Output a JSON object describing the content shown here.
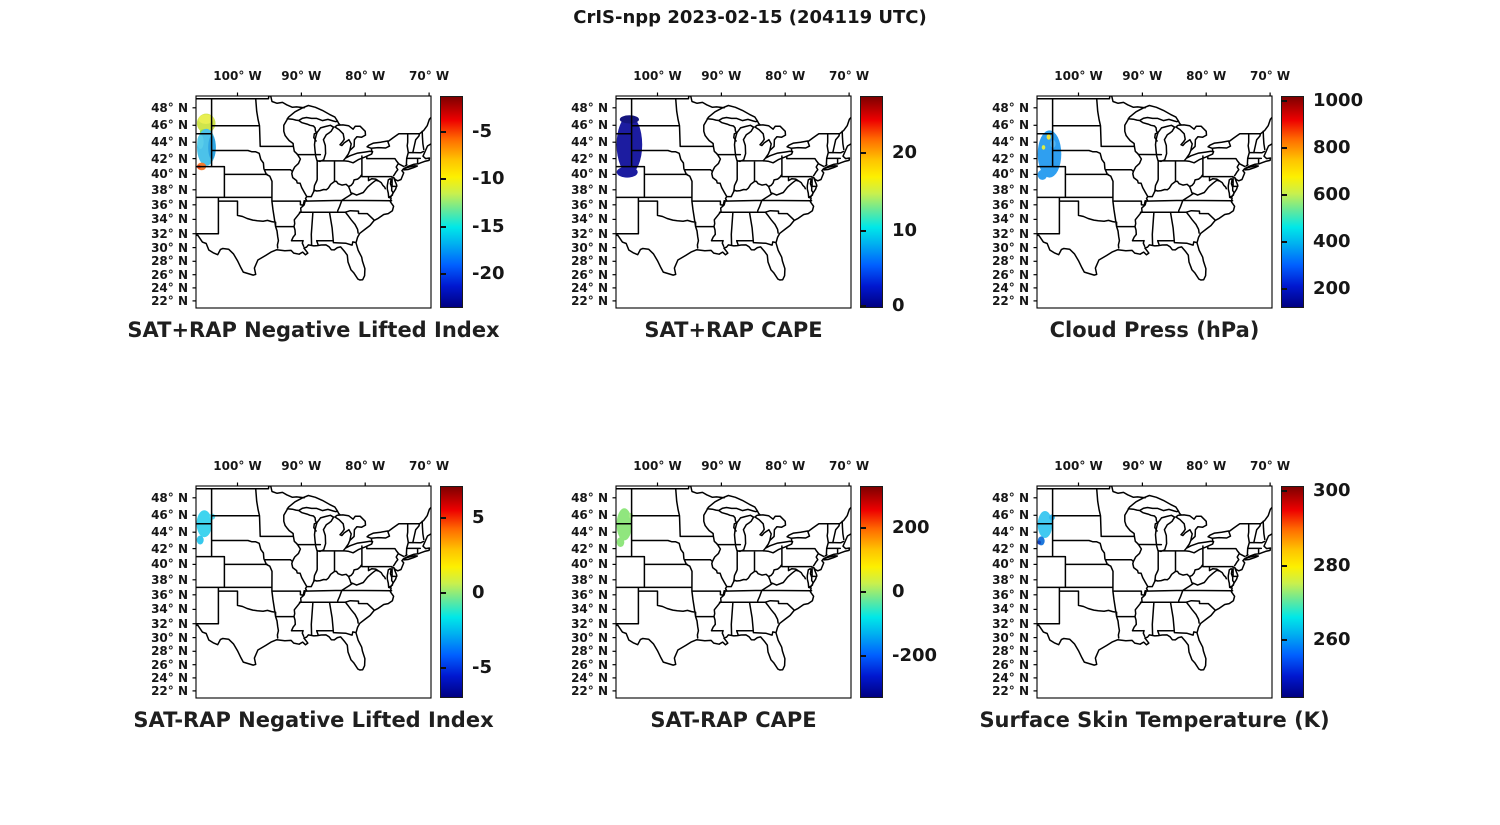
{
  "figure_title": "CrIS-npp 2023-02-15 (204119 UTC)",
  "colorbar_gradient": [
    "#7f0000 0%",
    "#ee0000 11%",
    "#ff6a00 20%",
    "#ffc400 30%",
    "#fdf000 38%",
    "#c8f04e 46%",
    "#64e89b 54%",
    "#00e8e8 62%",
    "#00b0f0 70%",
    "#0060ff 80%",
    "#0018d0 90%",
    "#000082 100%"
  ],
  "map": {
    "lon_ticks": [
      {
        "label": "100° W",
        "lon": -100
      },
      {
        "label": "90° W",
        "lon": -90
      },
      {
        "label": "80° W",
        "lon": -80
      },
      {
        "label": "70° W",
        "lon": -70
      }
    ],
    "lat_ticks": [
      {
        "label": "48° N",
        "lat": 48
      },
      {
        "label": "46° N",
        "lat": 46
      },
      {
        "label": "44° N",
        "lat": 44
      },
      {
        "label": "42° N",
        "lat": 42
      },
      {
        "label": "40° N",
        "lat": 40
      },
      {
        "label": "38° N",
        "lat": 38
      },
      {
        "label": "36° N",
        "lat": 36
      },
      {
        "label": "34° N",
        "lat": 34
      },
      {
        "label": "32° N",
        "lat": 32
      },
      {
        "label": "30° N",
        "lat": 30
      },
      {
        "label": "28° N",
        "lat": 28
      },
      {
        "label": "26° N",
        "lat": 26
      },
      {
        "label": "24° N",
        "lat": 24
      },
      {
        "label": "22° N",
        "lat": 22
      }
    ]
  },
  "panels": [
    {
      "title": "SAT+RAP Negative Lifted Index",
      "colorbar": {
        "ticks": [
          {
            "label": "-5",
            "pos": 0.17
          },
          {
            "label": "-10",
            "pos": 0.393
          },
          {
            "label": "-15",
            "pos": 0.617
          },
          {
            "label": "-20",
            "pos": 0.84
          }
        ]
      },
      "patches": [
        {
          "lon": [
            -106.35,
            -103.45
          ],
          "lat": [
            45.1,
            47.35
          ],
          "color": "#cfe44c"
        },
        {
          "lon": [
            -106.1,
            -103.8
          ],
          "lat": [
            46.15,
            47.25
          ],
          "color": "#e9ef52"
        },
        {
          "lon": [
            -105.9,
            -104.4
          ],
          "lat": [
            44.9,
            45.55
          ],
          "color": "#8edc55"
        },
        {
          "lon": [
            -106.35,
            -103.4
          ],
          "lat": [
            41.1,
            45.6
          ],
          "color": "#4cc2e9"
        },
        {
          "lon": [
            -104.6,
            -103.4
          ],
          "lat": [
            41.9,
            44.8
          ],
          "color": "#2ea4e2"
        },
        {
          "lon": [
            -106.3,
            -105.3
          ],
          "lat": [
            43.2,
            44.9
          ],
          "color": "#59cdea"
        },
        {
          "lon": [
            -106.35,
            -104.9
          ],
          "lat": [
            40.55,
            41.5
          ],
          "color": "#f47d30"
        },
        {
          "lon": [
            -106.35,
            -105.75
          ],
          "lat": [
            40.75,
            41.2
          ],
          "color": "#e23a1c"
        }
      ]
    },
    {
      "title": "SAT+RAP CAPE",
      "colorbar": {
        "ticks": [
          {
            "label": "20",
            "pos": 0.27
          },
          {
            "label": "10",
            "pos": 0.635
          },
          {
            "label": "0",
            "pos": 0.99
          }
        ]
      },
      "patches": [
        {
          "lon": [
            -106.4,
            -102.4
          ],
          "lat": [
            40.1,
            47.1
          ],
          "color": "#1c1ca0"
        },
        {
          "lon": [
            -106.4,
            -103.1
          ],
          "lat": [
            39.6,
            41.0
          ],
          "color": "#1c1ca0"
        },
        {
          "lon": [
            -105.9,
            -102.9
          ],
          "lat": [
            46.2,
            47.15
          ],
          "color": "#15157e"
        }
      ]
    },
    {
      "title": "Cloud Press (hPa)",
      "colorbar": {
        "ticks": [
          {
            "label": "1000",
            "pos": 0.022
          },
          {
            "label": "800",
            "pos": 0.245
          },
          {
            "label": "600",
            "pos": 0.468
          },
          {
            "label": "400",
            "pos": 0.69
          },
          {
            "label": "200",
            "pos": 0.912
          }
        ]
      },
      "patches": [
        {
          "lon": [
            -106.4,
            -102.7
          ],
          "lat": [
            39.6,
            45.4
          ],
          "color": "#2f9ff0"
        },
        {
          "lon": [
            -106.4,
            -104.9
          ],
          "lat": [
            39.3,
            40.6
          ],
          "color": "#2f9ff0"
        },
        {
          "lon": [
            -104.4,
            -103.6
          ],
          "lat": [
            43.3,
            44.3
          ],
          "color": "#58b8f2"
        },
        {
          "lon": [
            -105.0,
            -104.35
          ],
          "lat": [
            44.3,
            44.95
          ],
          "color": "#efe23c"
        },
        {
          "lon": [
            -105.75,
            -105.2
          ],
          "lat": [
            43.1,
            43.65
          ],
          "color": "#d9ec48"
        }
      ]
    },
    {
      "title": "SAT-RAP Negative Lifted Index",
      "colorbar": {
        "ticks": [
          {
            "label": "5",
            "pos": 0.15
          },
          {
            "label": "0",
            "pos": 0.505
          },
          {
            "label": "-5",
            "pos": 0.86
          }
        ]
      },
      "patches": [
        {
          "lon": [
            -106.4,
            -104.0
          ],
          "lat": [
            43.4,
            46.6
          ],
          "color": "#3fd4ef"
        },
        {
          "lon": [
            -104.4,
            -103.5
          ],
          "lat": [
            45.5,
            46.2
          ],
          "color": "#57dcf1"
        },
        {
          "lon": [
            -106.4,
            -105.3
          ],
          "lat": [
            42.5,
            43.6
          ],
          "color": "#35c8ec"
        }
      ]
    },
    {
      "title": "SAT-RAP CAPE",
      "colorbar": {
        "ticks": [
          {
            "label": "200",
            "pos": 0.2
          },
          {
            "label": "0",
            "pos": 0.5
          },
          {
            "label": "-200",
            "pos": 0.8
          }
        ]
      },
      "patches": [
        {
          "lon": [
            -106.4,
            -104.0
          ],
          "lat": [
            43.0,
            46.8
          ],
          "color": "#90e67e"
        },
        {
          "lon": [
            -106.4,
            -105.2
          ],
          "lat": [
            42.2,
            43.4
          ],
          "color": "#90e67e"
        },
        {
          "lon": [
            -104.5,
            -103.8
          ],
          "lat": [
            45.6,
            46.3
          ],
          "color": "#a8ec8a"
        }
      ]
    },
    {
      "title": "Surface Skin Temperature (K)",
      "colorbar": {
        "ticks": [
          {
            "label": "300",
            "pos": 0.025
          },
          {
            "label": "280",
            "pos": 0.375
          },
          {
            "label": "260",
            "pos": 0.725
          }
        ]
      },
      "patches": [
        {
          "lon": [
            -106.4,
            -104.1
          ],
          "lat": [
            43.3,
            46.5
          ],
          "color": "#42c9f1"
        },
        {
          "lon": [
            -104.6,
            -103.7
          ],
          "lat": [
            45.4,
            46.1
          ],
          "color": "#2fb4ee"
        },
        {
          "lon": [
            -106.4,
            -105.3
          ],
          "lat": [
            42.4,
            43.5
          ],
          "color": "#1e78dc"
        },
        {
          "lon": [
            -106.4,
            -105.9
          ],
          "lat": [
            42.5,
            43.0
          ],
          "color": "#1240b8"
        }
      ]
    }
  ],
  "chart_data": [
    {
      "type": "heatmap",
      "title": "SAT+RAP Negative Lifted Index",
      "map_extent": {
        "lon": [
          -106.5,
          -69.7
        ],
        "lat": [
          20.9,
          49.3
        ]
      },
      "lon_ticks_deg_west": [
        100,
        90,
        80,
        70
      ],
      "lat_ticks_deg_north": [
        48,
        46,
        44,
        42,
        40,
        38,
        36,
        34,
        32,
        30,
        28,
        26,
        24,
        22
      ],
      "colormap": "jet",
      "colorbar_ticks": [
        -5,
        -10,
        -15,
        -20
      ],
      "swath": {
        "lon": [
          -106.4,
          -103.4
        ],
        "lat": [
          40.6,
          47.3
        ],
        "values_approx": "north band -8 to -10 (yellow-green); central area -13 to -16 (cyan/blue); small southwest spot -3 to -5 (orange-red)"
      }
    },
    {
      "type": "heatmap",
      "title": "SAT+RAP CAPE",
      "map_extent": {
        "lon": [
          -106.5,
          -69.7
        ],
        "lat": [
          20.9,
          49.3
        ]
      },
      "lon_ticks_deg_west": [
        100,
        90,
        80,
        70
      ],
      "lat_ticks_deg_north": [
        48,
        46,
        44,
        42,
        40,
        38,
        36,
        34,
        32,
        30,
        28,
        26,
        24,
        22
      ],
      "colormap": "jet",
      "colorbar_ticks": [
        20,
        10,
        0
      ],
      "swath": {
        "lon": [
          -106.4,
          -102.4
        ],
        "lat": [
          39.6,
          47.1
        ],
        "values_approx": "uniform near 0 (dark navy) over entire swath"
      }
    },
    {
      "type": "heatmap",
      "title": "Cloud Press (hPa)",
      "map_extent": {
        "lon": [
          -106.5,
          -69.7
        ],
        "lat": [
          20.9,
          49.3
        ]
      },
      "lon_ticks_deg_west": [
        100,
        90,
        80,
        70
      ],
      "lat_ticks_deg_north": [
        48,
        46,
        44,
        42,
        40,
        38,
        36,
        34,
        32,
        30,
        28,
        26,
        24,
        22
      ],
      "colormap": "jet",
      "colorbar_ticks": [
        1000,
        800,
        600,
        400,
        200
      ],
      "swath": {
        "lon": [
          -106.4,
          -102.6
        ],
        "lat": [
          39.3,
          45.4
        ],
        "values_approx": "mostly 250-350 hPa (light blue) with isolated ~600 hPa yellow spots near 44.6N/104.7W and 43.4N/105.5W"
      }
    },
    {
      "type": "heatmap",
      "title": "SAT-RAP Negative Lifted Index",
      "map_extent": {
        "lon": [
          -106.5,
          -69.7
        ],
        "lat": [
          20.9,
          49.3
        ]
      },
      "lon_ticks_deg_west": [
        100,
        90,
        80,
        70
      ],
      "lat_ticks_deg_north": [
        48,
        46,
        44,
        42,
        40,
        38,
        36,
        34,
        32,
        30,
        28,
        26,
        24,
        22
      ],
      "colormap": "jet",
      "colorbar_ticks": [
        5,
        0,
        -5
      ],
      "swath": {
        "lon": [
          -106.4,
          -103.5
        ],
        "lat": [
          42.5,
          46.6
        ],
        "values_approx": "about -1 to -2 (cyan) over small patch near MT/WY/SD corner"
      }
    },
    {
      "type": "heatmap",
      "title": "SAT-RAP CAPE",
      "map_extent": {
        "lon": [
          -106.5,
          -69.7
        ],
        "lat": [
          20.9,
          49.3
        ]
      },
      "lon_ticks_deg_west": [
        100,
        90,
        80,
        70
      ],
      "lat_ticks_deg_north": [
        48,
        46,
        44,
        42,
        40,
        38,
        36,
        34,
        32,
        30,
        28,
        26,
        24,
        22
      ],
      "colormap": "jet",
      "colorbar_ticks": [
        200,
        0,
        -200
      ],
      "swath": {
        "lon": [
          -106.4,
          -103.8
        ],
        "lat": [
          42.2,
          46.8
        ],
        "values_approx": "near 0 (light green) over small patch"
      }
    },
    {
      "type": "heatmap",
      "title": "Surface Skin Temperature (K)",
      "map_extent": {
        "lon": [
          -106.5,
          -69.7
        ],
        "lat": [
          20.9,
          49.3
        ]
      },
      "lon_ticks_deg_west": [
        100,
        90,
        80,
        70
      ],
      "lat_ticks_deg_north": [
        48,
        46,
        44,
        42,
        40,
        38,
        36,
        34,
        32,
        30,
        28,
        26,
        24,
        22
      ],
      "colormap": "jet",
      "colorbar_ticks": [
        300,
        280,
        260
      ],
      "swath": {
        "lon": [
          -106.4,
          -103.7
        ],
        "lat": [
          42.4,
          46.5
        ],
        "values_approx": "mostly 262-268 K (cyan) with ~250 K (dark blue) spot at southwest edge near 42.7N"
      }
    }
  ]
}
